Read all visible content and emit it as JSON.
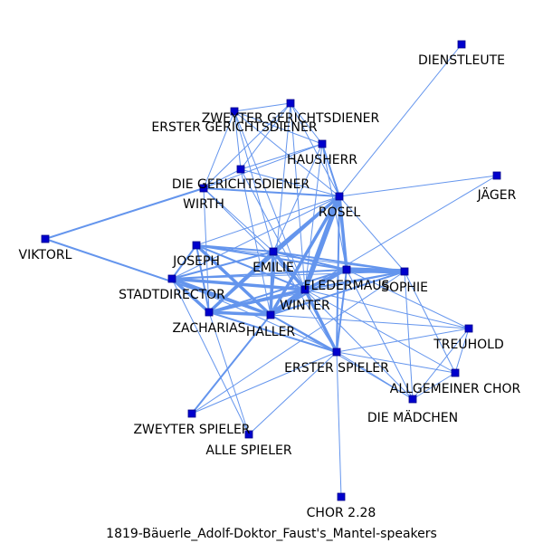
{
  "caption": "1819-Bäuerle_Adolf-Doktor_Faust's_Mantel-speakers",
  "colors": {
    "edge": "#6495ed",
    "node_fill": "#0000cd",
    "node_stroke": "#00008b",
    "label": "#000000"
  },
  "nodes": [
    {
      "id": "DIENSTLEUTE",
      "label": "DIENSTLEUTE"
    },
    {
      "id": "ZWEYTER GERICHTSDIENER",
      "label": "ZWEYTER GERICHTSDIENER"
    },
    {
      "id": "ERSTER GERICHTSDIENER",
      "label": "ERSTER GERICHTSDIENER"
    },
    {
      "id": "HAUSHERR",
      "label": "HAUSHERR"
    },
    {
      "id": "DIE GERICHTSDIENER",
      "label": "DIE GERICHTSDIENER"
    },
    {
      "id": "WIRTH",
      "label": "WIRTH"
    },
    {
      "id": "JÄGER",
      "label": "JÄGER"
    },
    {
      "id": "ROSEL",
      "label": "ROSEL"
    },
    {
      "id": "VIKTORL",
      "label": "VIKTORL"
    },
    {
      "id": "JOSEPH",
      "label": "JOSEPH"
    },
    {
      "id": "EMILIE",
      "label": "EMILIE"
    },
    {
      "id": "FLEDERMAUS",
      "label": "FLEDERMAUS"
    },
    {
      "id": "SOPHIE",
      "label": "SOPHIE"
    },
    {
      "id": "STADTDIRECTOR",
      "label": "STADTDIRECTOR"
    },
    {
      "id": "WINTER",
      "label": "WINTER"
    },
    {
      "id": "ZACHARIAS",
      "label": "ZACHARIAS"
    },
    {
      "id": "HALLER",
      "label": "HALLER"
    },
    {
      "id": "TREUHOLD",
      "label": "TREUHOLD"
    },
    {
      "id": "ERSTER SPIELER",
      "label": "ERSTER SPIELER"
    },
    {
      "id": "ALLGEMEINER CHOR",
      "label": "ALLGEMEINER CHOR"
    },
    {
      "id": "DIE MÄDCHEN",
      "label": "DIE MÄDCHEN"
    },
    {
      "id": "ZWEYTER SPIELER",
      "label": "ZWEYTER SPIELER"
    },
    {
      "id": "ALLE SPIELER",
      "label": "ALLE SPIELER"
    },
    {
      "id": "CHOR 2.28",
      "label": "CHOR 2.28"
    }
  ],
  "edges": [
    [
      "DIENSTLEUTE",
      "ROSEL",
      1
    ],
    [
      "JÄGER",
      "ROSEL",
      1
    ],
    [
      "JÄGER",
      "WINTER",
      1
    ],
    [
      "ZWEYTER GERICHTSDIENER",
      "ERSTER GERICHTSDIENER",
      1
    ],
    [
      "ZWEYTER GERICHTSDIENER",
      "HAUSHERR",
      1
    ],
    [
      "ZWEYTER GERICHTSDIENER",
      "DIE GERICHTSDIENER",
      1
    ],
    [
      "ZWEYTER GERICHTSDIENER",
      "WIRTH",
      1
    ],
    [
      "ZWEYTER GERICHTSDIENER",
      "ROSEL",
      1
    ],
    [
      "ZWEYTER GERICHTSDIENER",
      "WINTER",
      1
    ],
    [
      "ZWEYTER GERICHTSDIENER",
      "HALLER",
      1
    ],
    [
      "ERSTER GERICHTSDIENER",
      "HAUSHERR",
      1
    ],
    [
      "ERSTER GERICHTSDIENER",
      "DIE GERICHTSDIENER",
      1
    ],
    [
      "ERSTER GERICHTSDIENER",
      "WIRTH",
      1
    ],
    [
      "ERSTER GERICHTSDIENER",
      "ROSEL",
      1
    ],
    [
      "ERSTER GERICHTSDIENER",
      "WINTER",
      1
    ],
    [
      "ERSTER GERICHTSDIENER",
      "EMILIE",
      1
    ],
    [
      "HAUSHERR",
      "DIE GERICHTSDIENER",
      1
    ],
    [
      "HAUSHERR",
      "WIRTH",
      1
    ],
    [
      "HAUSHERR",
      "ROSEL",
      2
    ],
    [
      "HAUSHERR",
      "WINTER",
      1
    ],
    [
      "HAUSHERR",
      "FLEDERMAUS",
      1
    ],
    [
      "HAUSHERR",
      "EMILIE",
      1
    ],
    [
      "DIE GERICHTSDIENER",
      "WIRTH",
      1
    ],
    [
      "DIE GERICHTSDIENER",
      "ROSEL",
      1
    ],
    [
      "DIE GERICHTSDIENER",
      "WINTER",
      1
    ],
    [
      "DIE GERICHTSDIENER",
      "HALLER",
      1
    ],
    [
      "WIRTH",
      "ROSEL",
      2
    ],
    [
      "WIRTH",
      "VIKTORL",
      2
    ],
    [
      "WIRTH",
      "WINTER",
      1
    ],
    [
      "WIRTH",
      "ZACHARIAS",
      1
    ],
    [
      "WIRTH",
      "EMILIE",
      1
    ],
    [
      "VIKTORL",
      "HALLER",
      2
    ],
    [
      "ROSEL",
      "EMILIE",
      3
    ],
    [
      "ROSEL",
      "WINTER",
      4
    ],
    [
      "ROSEL",
      "FLEDERMAUS",
      3
    ],
    [
      "ROSEL",
      "ZACHARIAS",
      2
    ],
    [
      "ROSEL",
      "HALLER",
      3
    ],
    [
      "ROSEL",
      "JOSEPH",
      1
    ],
    [
      "ROSEL",
      "SOPHIE",
      1
    ],
    [
      "ROSEL",
      "STADTDIRECTOR",
      1
    ],
    [
      "ROSEL",
      "ERSTER SPIELER",
      2
    ],
    [
      "JOSEPH",
      "EMILIE",
      2
    ],
    [
      "JOSEPH",
      "ZACHARIAS",
      2
    ],
    [
      "JOSEPH",
      "HALLER",
      3
    ],
    [
      "JOSEPH",
      "WINTER",
      2
    ],
    [
      "JOSEPH",
      "STADTDIRECTOR",
      2
    ],
    [
      "JOSEPH",
      "FLEDERMAUS",
      2
    ],
    [
      "JOSEPH",
      "SOPHIE",
      1
    ],
    [
      "EMILIE",
      "FLEDERMAUS",
      2
    ],
    [
      "EMILIE",
      "WINTER",
      3
    ],
    [
      "EMILIE",
      "HALLER",
      3
    ],
    [
      "EMILIE",
      "ZACHARIAS",
      3
    ],
    [
      "EMILIE",
      "STADTDIRECTOR",
      2
    ],
    [
      "EMILIE",
      "SOPHIE",
      2
    ],
    [
      "EMILIE",
      "ERSTER SPIELER",
      1
    ],
    [
      "FLEDERMAUS",
      "SOPHIE",
      4
    ],
    [
      "FLEDERMAUS",
      "WINTER",
      3
    ],
    [
      "FLEDERMAUS",
      "HALLER",
      2
    ],
    [
      "FLEDERMAUS",
      "ZACHARIAS",
      2
    ],
    [
      "FLEDERMAUS",
      "STADTDIRECTOR",
      2
    ],
    [
      "FLEDERMAUS",
      "ERSTER SPIELER",
      2
    ],
    [
      "FLEDERMAUS",
      "TREUHOLD",
      1
    ],
    [
      "FLEDERMAUS",
      "DIE MÄDCHEN",
      1
    ],
    [
      "SOPHIE",
      "WINTER",
      2
    ],
    [
      "SOPHIE",
      "HALLER",
      2
    ],
    [
      "SOPHIE",
      "STADTDIRECTOR",
      1
    ],
    [
      "SOPHIE",
      "ZACHARIAS",
      1
    ],
    [
      "SOPHIE",
      "ALLGEMEINER CHOR",
      1
    ],
    [
      "SOPHIE",
      "DIE MÄDCHEN",
      1
    ],
    [
      "SOPHIE",
      "ZWEYTER SPIELER",
      1
    ],
    [
      "STADTDIRECTOR",
      "WINTER",
      3
    ],
    [
      "STADTDIRECTOR",
      "HALLER",
      3
    ],
    [
      "STADTDIRECTOR",
      "ZACHARIAS",
      3
    ],
    [
      "STADTDIRECTOR",
      "ERSTER SPIELER",
      1
    ],
    [
      "STADTDIRECTOR",
      "ALLE SPIELER",
      1
    ],
    [
      "WINTER",
      "HALLER",
      4
    ],
    [
      "WINTER",
      "ZACHARIAS",
      3
    ],
    [
      "WINTER",
      "ERSTER SPIELER",
      3
    ],
    [
      "WINTER",
      "TREUHOLD",
      1
    ],
    [
      "WINTER",
      "ALLGEMEINER CHOR",
      1
    ],
    [
      "WINTER",
      "DIE MÄDCHEN",
      1
    ],
    [
      "ZACHARIAS",
      "HALLER",
      3
    ],
    [
      "ZACHARIAS",
      "ERSTER SPIELER",
      2
    ],
    [
      "ZACHARIAS",
      "ALLE SPIELER",
      1
    ],
    [
      "HALLER",
      "ERSTER SPIELER",
      2
    ],
    [
      "HALLER",
      "ZWEYTER SPIELER",
      2
    ],
    [
      "HALLER",
      "TREUHOLD",
      1
    ],
    [
      "HALLER",
      "DIE MÄDCHEN",
      1
    ],
    [
      "ERSTER SPIELER",
      "ZWEYTER SPIELER",
      1
    ],
    [
      "ERSTER SPIELER",
      "ALLE SPIELER",
      1
    ],
    [
      "ERSTER SPIELER",
      "CHOR 2.28",
      1
    ],
    [
      "ERSTER SPIELER",
      "TREUHOLD",
      1
    ],
    [
      "ERSTER SPIELER",
      "ALLGEMEINER CHOR",
      1
    ],
    [
      "ERSTER SPIELER",
      "DIE MÄDCHEN",
      1
    ],
    [
      "TREUHOLD",
      "ALLGEMEINER CHOR",
      1
    ],
    [
      "TREUHOLD",
      "DIE MÄDCHEN",
      1
    ],
    [
      "ALLGEMEINER CHOR",
      "DIE MÄDCHEN",
      1
    ]
  ]
}
